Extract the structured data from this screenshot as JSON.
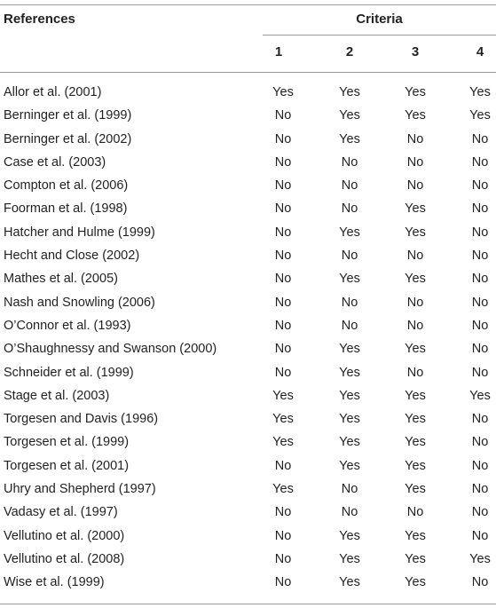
{
  "header": {
    "references": "References",
    "criteria": "Criteria",
    "criteria_numbers": [
      "1",
      "2",
      "3",
      "4"
    ]
  },
  "rows": [
    {
      "ref": "Allor et al. (2001)",
      "c": [
        "Yes",
        "Yes",
        "Yes",
        "Yes"
      ]
    },
    {
      "ref": "Berninger et al. (1999)",
      "c": [
        "No",
        "Yes",
        "Yes",
        "Yes"
      ]
    },
    {
      "ref": "Berninger et al. (2002)",
      "c": [
        "No",
        "Yes",
        "No",
        "No"
      ]
    },
    {
      "ref": "Case et al. (2003)",
      "c": [
        "No",
        "No",
        "No",
        "No"
      ]
    },
    {
      "ref": "Compton et al. (2006)",
      "c": [
        "No",
        "No",
        "No",
        "No"
      ]
    },
    {
      "ref": "Foorman et al. (1998)",
      "c": [
        "No",
        "No",
        "Yes",
        "No"
      ]
    },
    {
      "ref": "Hatcher and Hulme (1999)",
      "c": [
        "No",
        "Yes",
        "Yes",
        "No"
      ]
    },
    {
      "ref": "Hecht and Close (2002)",
      "c": [
        "No",
        "No",
        "No",
        "No"
      ]
    },
    {
      "ref": "Mathes et al. (2005)",
      "c": [
        "No",
        "Yes",
        "Yes",
        "No"
      ]
    },
    {
      "ref": "Nash and Snowling (2006)",
      "c": [
        "No",
        "No",
        "No",
        "No"
      ]
    },
    {
      "ref": "O’Connor et al. (1993)",
      "c": [
        "No",
        "No",
        "No",
        "No"
      ]
    },
    {
      "ref": "O’Shaughnessy and Swanson (2000)",
      "c": [
        "No",
        "Yes",
        "Yes",
        "No"
      ]
    },
    {
      "ref": "Schneider et al. (1999)",
      "c": [
        "No",
        "Yes",
        "No",
        "No"
      ]
    },
    {
      "ref": "Stage et al. (2003)",
      "c": [
        "Yes",
        "Yes",
        "Yes",
        "Yes"
      ]
    },
    {
      "ref": "Torgesen and Davis (1996)",
      "c": [
        "Yes",
        "Yes",
        "Yes",
        "No"
      ]
    },
    {
      "ref": "Torgesen et al. (1999)",
      "c": [
        "Yes",
        "Yes",
        "Yes",
        "No"
      ]
    },
    {
      "ref": "Torgesen et al. (2001)",
      "c": [
        "No",
        "Yes",
        "Yes",
        "No"
      ]
    },
    {
      "ref": "Uhry and Shepherd (1997)",
      "c": [
        "Yes",
        "No",
        "Yes",
        "No"
      ]
    },
    {
      "ref": "Vadasy et al. (1997)",
      "c": [
        "No",
        "No",
        "No",
        "No"
      ]
    },
    {
      "ref": "Vellutino et al. (2000)",
      "c": [
        "No",
        "Yes",
        "Yes",
        "No"
      ]
    },
    {
      "ref": "Vellutino et al. (2008)",
      "c": [
        "No",
        "Yes",
        "Yes",
        "Yes"
      ]
    },
    {
      "ref": "Wise et al. (1999)",
      "c": [
        "No",
        "Yes",
        "Yes",
        "No"
      ]
    }
  ]
}
